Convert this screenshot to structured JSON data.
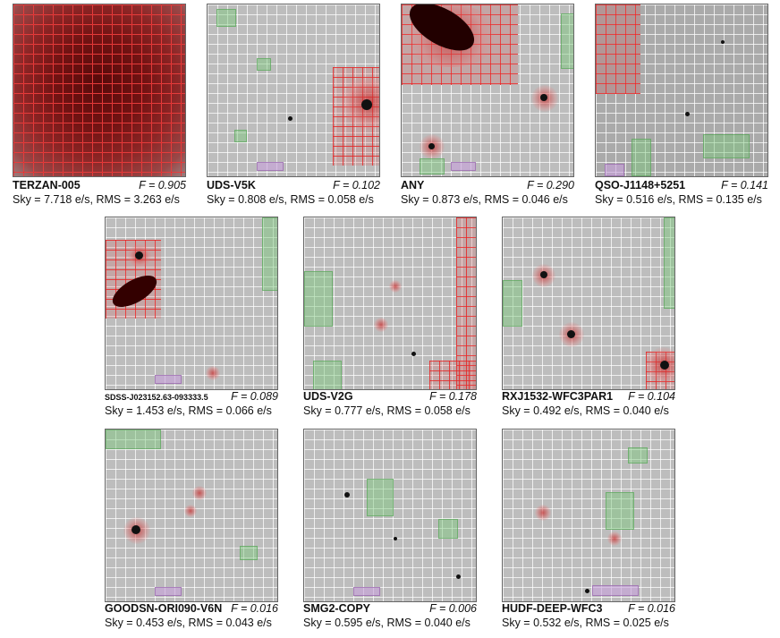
{
  "panels": [
    {
      "name": "TERZAN-005",
      "f": "F = 0.905",
      "stats": "Sky = 7.718 e/s, RMS = 3.263 e/s"
    },
    {
      "name": "UDS-V5K",
      "f": "F = 0.102",
      "stats": "Sky = 0.808 e/s, RMS = 0.058 e/s"
    },
    {
      "name": "ANY",
      "f": "F = 0.290",
      "stats": "Sky = 0.873 e/s, RMS = 0.046 e/s"
    },
    {
      "name": "QSO-J1148+5251",
      "f": "F = 0.141",
      "stats": "Sky = 0.516 e/s, RMS = 0.135 e/s"
    },
    {
      "name": "SDSS-J023152.63-093333.5",
      "f": "F = 0.089",
      "stats": "Sky = 1.453 e/s, RMS = 0.066 e/s"
    },
    {
      "name": "UDS-V2G",
      "f": "F = 0.178",
      "stats": "Sky = 0.777 e/s, RMS = 0.058 e/s"
    },
    {
      "name": "RXJ1532-WFC3PAR1",
      "f": "F = 0.104",
      "stats": "Sky = 0.492 e/s, RMS = 0.040 e/s"
    },
    {
      "name": "GOODSN-ORI090-V6N",
      "f": "F = 0.016",
      "stats": "Sky = 0.453 e/s, RMS = 0.043 e/s"
    },
    {
      "name": "SMG2-COPY",
      "f": "F = 0.006",
      "stats": "Sky = 0.595 e/s, RMS = 0.040 e/s"
    },
    {
      "name": "HUDF-DEEP-WFC3",
      "f": "F = 0.016",
      "stats": "Sky = 0.532 e/s, RMS = 0.025 e/s"
    }
  ]
}
